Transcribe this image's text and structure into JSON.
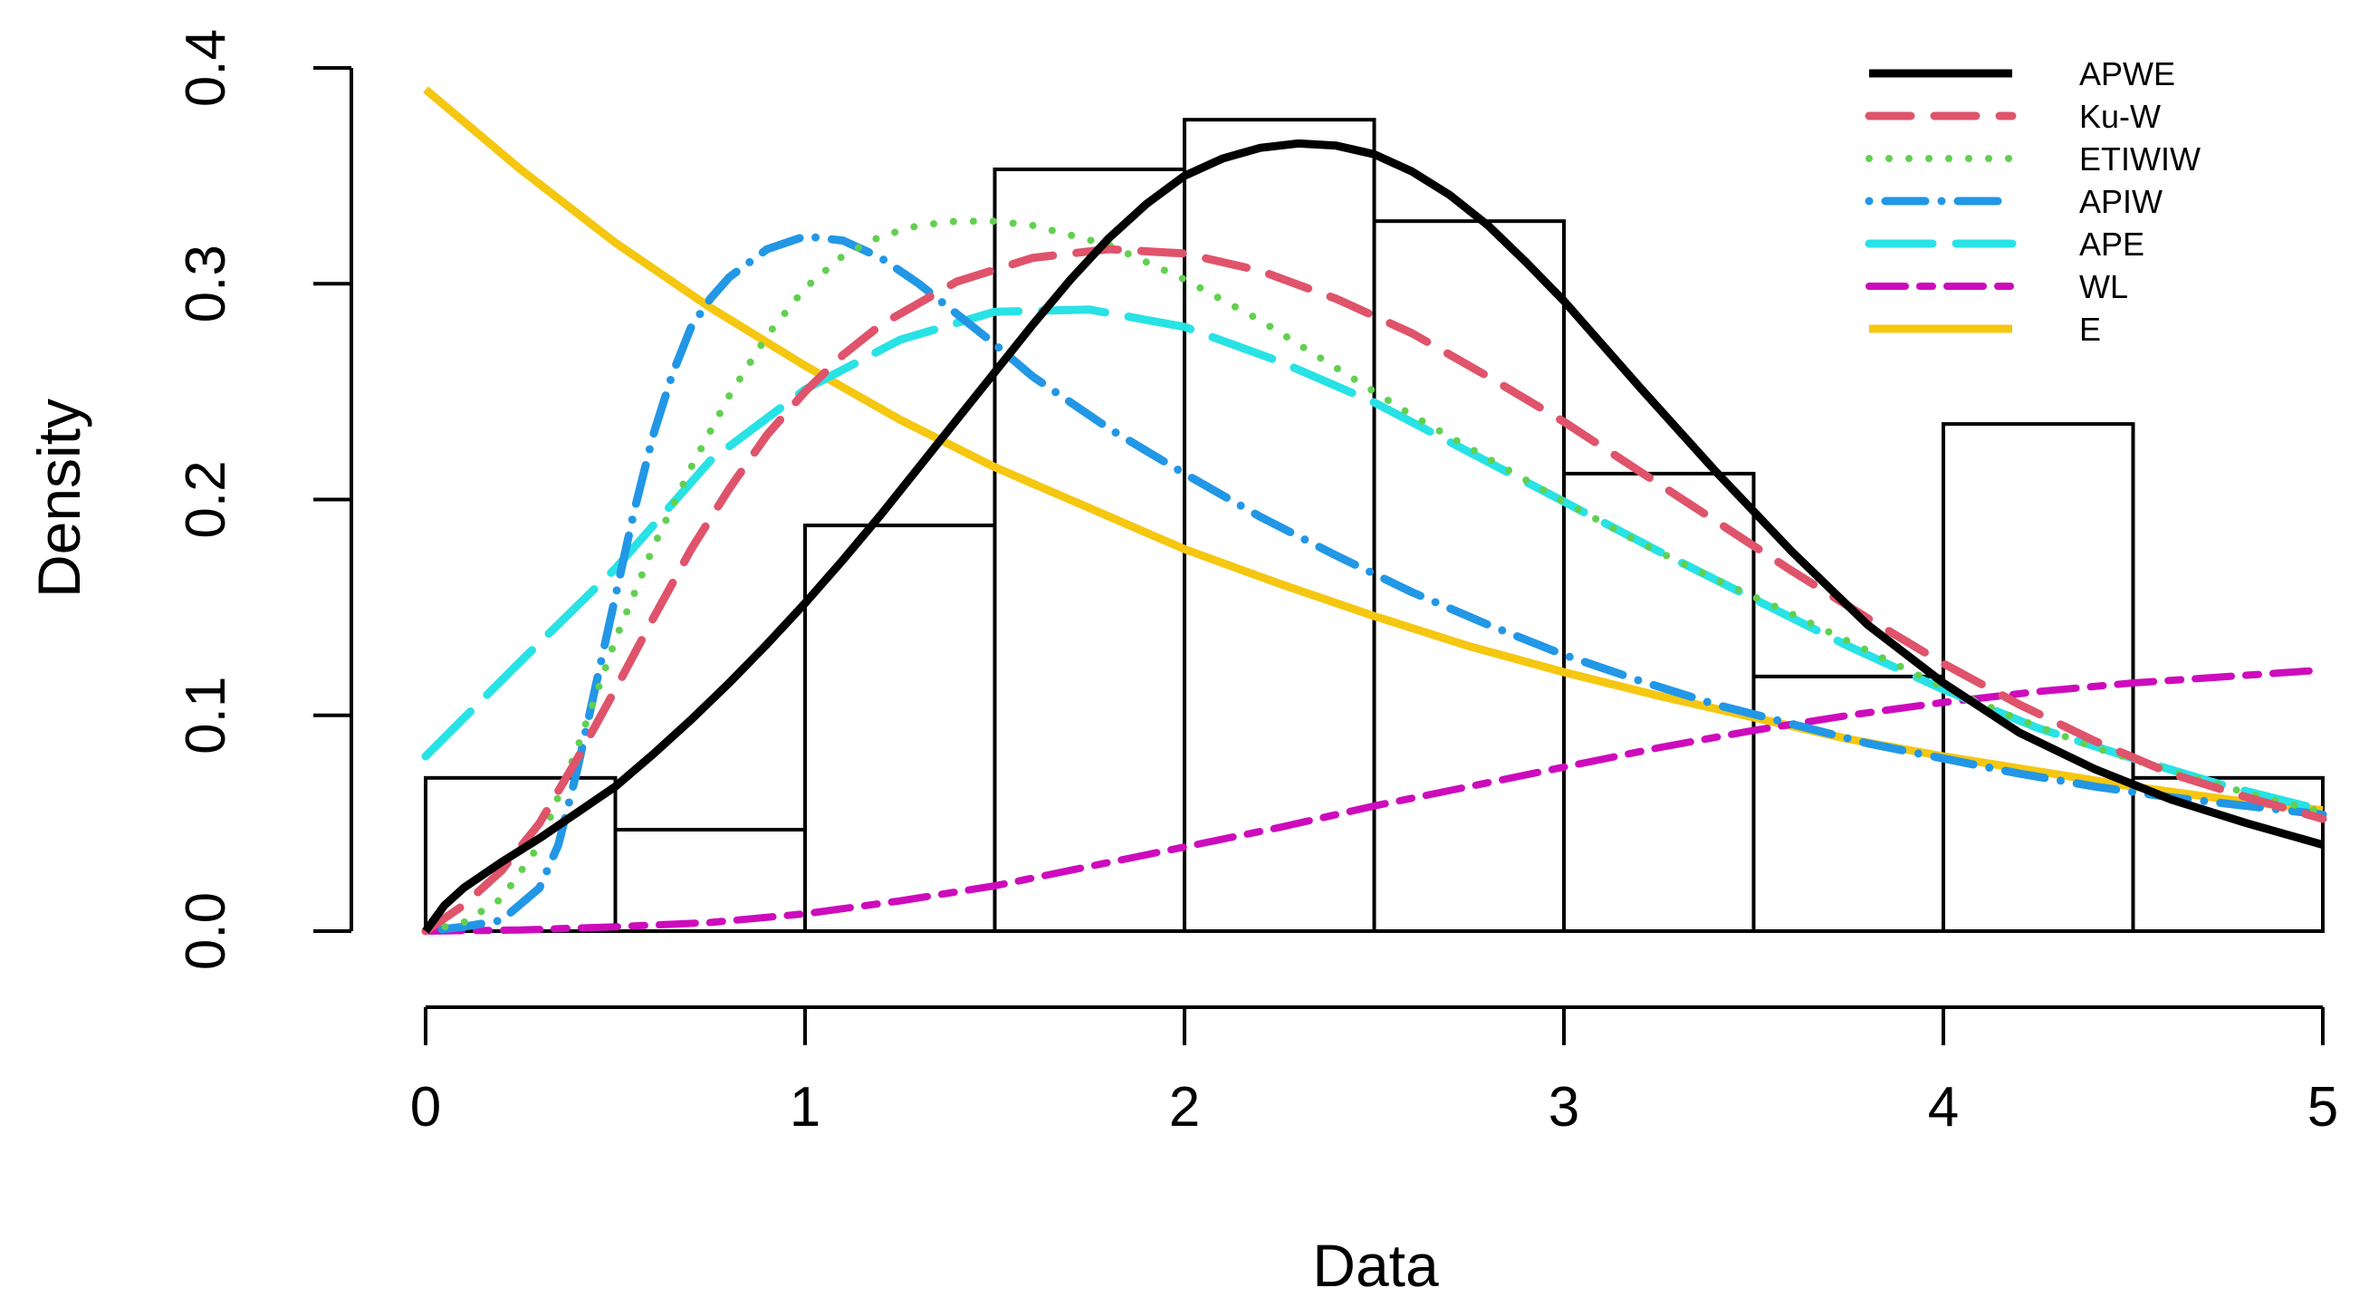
{
  "chart_data": {
    "type": "histogram-with-density-curves",
    "title": "",
    "xlabel": "Data",
    "ylabel": "Density",
    "xlim": [
      0,
      5
    ],
    "ylim": [
      0,
      0.4
    ],
    "xticks": [
      0,
      1,
      2,
      3,
      4,
      5
    ],
    "xtick_labels": [
      "0",
      "1",
      "2",
      "3",
      "4",
      "5"
    ],
    "yticks": [
      0.0,
      0.1,
      0.2,
      0.3,
      0.4
    ],
    "ytick_labels": [
      "0.0",
      "0.1",
      "0.2",
      "0.3",
      "0.4"
    ],
    "legend_position": "top-right",
    "histogram": {
      "bin_edges": [
        0,
        0.5,
        1,
        1.5,
        2,
        2.5,
        3,
        3.5,
        4,
        4.5,
        5
      ],
      "densities": [
        0.071,
        0.047,
        0.188,
        0.353,
        0.376,
        0.329,
        0.212,
        0.118,
        0.235,
        0.071
      ]
    },
    "series": [
      {
        "name": "APWE",
        "color": "#000000",
        "style": "solid",
        "x": [
          0,
          0.05,
          0.1,
          0.2,
          0.3,
          0.4,
          0.5,
          0.6,
          0.7,
          0.8,
          0.9,
          1.0,
          1.1,
          1.2,
          1.3,
          1.4,
          1.5,
          1.6,
          1.7,
          1.8,
          1.9,
          2.0,
          2.1,
          2.2,
          2.3,
          2.4,
          2.5,
          2.6,
          2.7,
          2.8,
          2.9,
          3.0,
          3.2,
          3.4,
          3.6,
          3.8,
          4.0,
          4.2,
          4.4,
          4.6,
          4.8,
          5.0
        ],
        "y": [
          0.0,
          0.012,
          0.02,
          0.032,
          0.043,
          0.055,
          0.067,
          0.082,
          0.098,
          0.115,
          0.133,
          0.152,
          0.172,
          0.193,
          0.215,
          0.237,
          0.259,
          0.281,
          0.302,
          0.321,
          0.337,
          0.35,
          0.358,
          0.363,
          0.365,
          0.364,
          0.36,
          0.352,
          0.341,
          0.327,
          0.31,
          0.292,
          0.252,
          0.213,
          0.176,
          0.142,
          0.115,
          0.092,
          0.075,
          0.061,
          0.05,
          0.04
        ]
      },
      {
        "name": "Ku-W",
        "color": "#DF536B",
        "style": "dashed",
        "x": [
          0,
          0.1,
          0.2,
          0.3,
          0.4,
          0.5,
          0.6,
          0.7,
          0.8,
          0.9,
          1.0,
          1.1,
          1.2,
          1.4,
          1.6,
          1.8,
          2.0,
          2.2,
          2.4,
          2.6,
          2.8,
          3.0,
          3.2,
          3.4,
          3.6,
          3.8,
          4.0,
          4.2,
          4.4,
          4.6,
          4.8,
          5.0
        ],
        "y": [
          0.0,
          0.012,
          0.028,
          0.05,
          0.08,
          0.112,
          0.145,
          0.177,
          0.205,
          0.23,
          0.25,
          0.267,
          0.281,
          0.301,
          0.312,
          0.316,
          0.314,
          0.306,
          0.293,
          0.277,
          0.257,
          0.236,
          0.213,
          0.19,
          0.167,
          0.145,
          0.124,
          0.105,
          0.088,
          0.073,
          0.062,
          0.052
        ]
      },
      {
        "name": "ETIWIW",
        "color": "#61D04F",
        "style": "dotted",
        "x": [
          0,
          0.1,
          0.2,
          0.3,
          0.4,
          0.5,
          0.6,
          0.7,
          0.8,
          0.9,
          1.0,
          1.1,
          1.2,
          1.3,
          1.4,
          1.5,
          1.6,
          1.8,
          2.0,
          2.2,
          2.4,
          2.6,
          2.8,
          3.0,
          3.2,
          3.4,
          3.6,
          3.8,
          4.0,
          4.2,
          4.4,
          4.6,
          4.8,
          5.0
        ],
        "y": [
          0.0,
          0.004,
          0.015,
          0.04,
          0.085,
          0.135,
          0.178,
          0.215,
          0.248,
          0.276,
          0.298,
          0.313,
          0.322,
          0.327,
          0.329,
          0.329,
          0.327,
          0.318,
          0.302,
          0.283,
          0.261,
          0.239,
          0.219,
          0.199,
          0.18,
          0.163,
          0.147,
          0.13,
          0.113,
          0.098,
          0.085,
          0.074,
          0.064,
          0.055
        ]
      },
      {
        "name": "APIW",
        "color": "#2297E6",
        "style": "dotdash",
        "x": [
          0,
          0.1,
          0.2,
          0.3,
          0.35,
          0.4,
          0.45,
          0.5,
          0.55,
          0.6,
          0.65,
          0.7,
          0.75,
          0.8,
          0.9,
          1.0,
          1.1,
          1.2,
          1.3,
          1.4,
          1.5,
          1.6,
          1.8,
          2.0,
          2.2,
          2.4,
          2.6,
          2.8,
          3.0,
          3.2,
          3.4,
          3.6,
          3.8,
          4.0,
          4.2,
          4.4,
          4.6,
          4.8,
          5.0
        ],
        "y": [
          0.0,
          0.002,
          0.005,
          0.02,
          0.04,
          0.075,
          0.115,
          0.155,
          0.195,
          0.23,
          0.258,
          0.28,
          0.293,
          0.303,
          0.316,
          0.322,
          0.32,
          0.312,
          0.3,
          0.286,
          0.272,
          0.257,
          0.233,
          0.212,
          0.192,
          0.174,
          0.157,
          0.142,
          0.128,
          0.116,
          0.105,
          0.096,
          0.087,
          0.08,
          0.073,
          0.067,
          0.062,
          0.058,
          0.054
        ]
      },
      {
        "name": "APE",
        "color": "#28E2E5",
        "style": "longdash",
        "x": [
          0,
          0.25,
          0.5,
          0.75,
          1.0,
          1.25,
          1.5,
          1.75,
          2.0,
          2.25,
          2.5,
          2.75,
          3.0,
          3.25,
          3.5,
          3.75,
          4.0,
          4.25,
          4.5,
          4.75,
          5.0
        ],
        "y": [
          0.081,
          0.125,
          0.168,
          0.218,
          0.251,
          0.274,
          0.287,
          0.288,
          0.28,
          0.264,
          0.245,
          0.222,
          0.199,
          0.176,
          0.154,
          0.132,
          0.112,
          0.094,
          0.08,
          0.067,
          0.056
        ]
      },
      {
        "name": "WL",
        "color": "#CD0BBC",
        "style": "twodash",
        "x": [
          0,
          0.25,
          0.5,
          0.75,
          1.0,
          1.25,
          1.5,
          1.75,
          2.0,
          2.25,
          2.5,
          2.75,
          3.0,
          3.25,
          3.5,
          3.75,
          4.0,
          4.25,
          4.5,
          4.75,
          5.0
        ],
        "y": [
          0.0,
          0.0005,
          0.002,
          0.004,
          0.008,
          0.014,
          0.021,
          0.03,
          0.039,
          0.048,
          0.058,
          0.067,
          0.076,
          0.085,
          0.093,
          0.1,
          0.106,
          0.111,
          0.115,
          0.118,
          0.121
        ]
      },
      {
        "name": "E",
        "color": "#F5C710",
        "style": "solid",
        "x": [
          0,
          0.25,
          0.5,
          0.75,
          1.0,
          1.25,
          1.5,
          1.75,
          2.0,
          2.25,
          2.5,
          2.75,
          3.0,
          3.25,
          3.5,
          3.75,
          4.0,
          4.25,
          4.5,
          4.75,
          5.0
        ],
        "y": [
          0.39,
          0.353,
          0.319,
          0.289,
          0.262,
          0.237,
          0.215,
          0.196,
          0.177,
          0.161,
          0.146,
          0.132,
          0.12,
          0.109,
          0.099,
          0.089,
          0.081,
          0.074,
          0.067,
          0.061,
          0.056
        ]
      }
    ]
  }
}
